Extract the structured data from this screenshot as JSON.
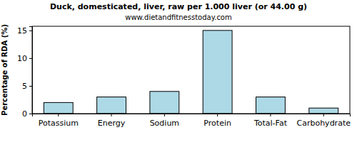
{
  "chart_data": {
    "type": "bar",
    "title": "Duck, domesticated, liver, raw per 1.000 liver (or 44.00 g)",
    "subtitle": "www.dietandfitnesstoday.com",
    "y_label": "Percentage of RDA (%)",
    "categories": [
      "Potassium",
      "Energy",
      "Sodium",
      "Protein",
      "Total-Fat",
      "Carbohydrate"
    ],
    "values": [
      2,
      3,
      4,
      15,
      3,
      1
    ],
    "color": "#add8e6",
    "ylim": [
      0,
      15.75
    ],
    "yticks": [
      0,
      5,
      10,
      15
    ],
    "grid": false
  }
}
